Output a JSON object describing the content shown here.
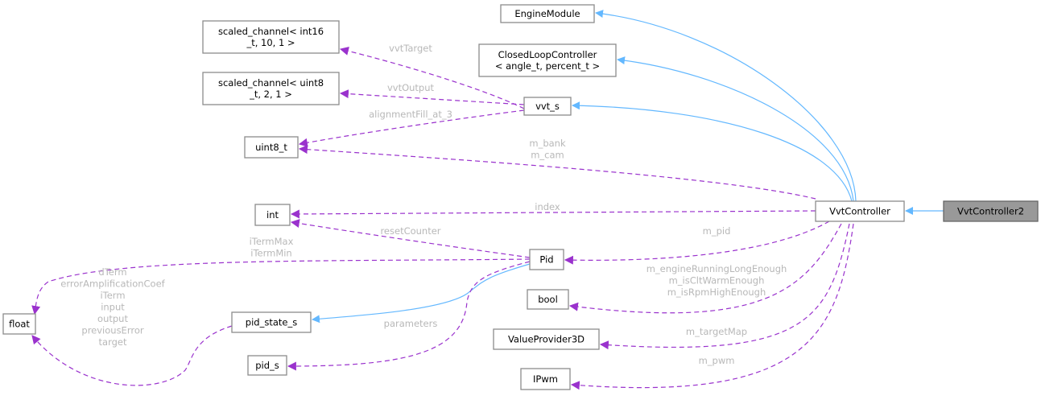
{
  "diagram": {
    "colors": {
      "inheritance": "#63b8ff",
      "usage": "#9a32cd",
      "current_node": "#999999",
      "label": "#b8b8b8"
    },
    "nodes": {
      "EngineModule": [
        "EngineModule"
      ],
      "ClosedLoopController": [
        "ClosedLoopController",
        "< angle_t, percent_t >"
      ],
      "sc_int16": [
        "scaled_channel< int16",
        "_t, 10, 1 >"
      ],
      "sc_uint8": [
        "scaled_channel< uint8",
        "_t, 2, 1 >"
      ],
      "vvt_s": [
        "vvt_s"
      ],
      "uint8_t": [
        "uint8_t"
      ],
      "int": [
        "int"
      ],
      "VvtController": [
        "VvtController"
      ],
      "VvtController2": [
        "VvtController2"
      ],
      "Pid": [
        "Pid"
      ],
      "float": [
        "float"
      ],
      "pid_state_s": [
        "pid_state_s"
      ],
      "bool": [
        "bool"
      ],
      "pid_s": [
        "pid_s"
      ],
      "ValueProvider3D": [
        "ValueProvider3D"
      ],
      "IPwm": [
        "IPwm"
      ]
    },
    "edges": [
      {
        "from": "VvtController",
        "to": "EngineModule",
        "kind": "inheritance",
        "labels": []
      },
      {
        "from": "VvtController",
        "to": "ClosedLoopController",
        "kind": "inheritance",
        "labels": []
      },
      {
        "from": "VvtController",
        "to": "vvt_s",
        "kind": "inheritance",
        "labels": []
      },
      {
        "from": "VvtController2",
        "to": "VvtController",
        "kind": "inheritance",
        "labels": []
      },
      {
        "from": "Pid",
        "to": "pid_state_s",
        "kind": "inheritance",
        "labels": []
      },
      {
        "from": "vvt_s",
        "to": "sc_int16",
        "kind": "usage",
        "labels": [
          "vvtTarget"
        ]
      },
      {
        "from": "vvt_s",
        "to": "sc_uint8",
        "kind": "usage",
        "labels": [
          "vvtOutput"
        ]
      },
      {
        "from": "vvt_s",
        "to": "uint8_t",
        "kind": "usage",
        "labels": [
          "alignmentFill_at_3"
        ]
      },
      {
        "from": "VvtController",
        "to": "uint8_t",
        "kind": "usage",
        "labels": [
          "m_bank",
          "m_cam"
        ]
      },
      {
        "from": "VvtController",
        "to": "int",
        "kind": "usage",
        "labels": [
          "index"
        ]
      },
      {
        "from": "Pid",
        "to": "int",
        "kind": "usage",
        "labels": [
          "resetCounter"
        ]
      },
      {
        "from": "Pid",
        "to": "float",
        "kind": "usage",
        "labels": [
          "iTermMax",
          "iTermMin"
        ]
      },
      {
        "from": "pid_state_s",
        "to": "float",
        "kind": "usage",
        "labels": [
          "dTerm",
          "errorAmplificationCoef",
          "iTerm",
          "input",
          "output",
          "previousError",
          "target"
        ]
      },
      {
        "from": "Pid",
        "to": "pid_s",
        "kind": "usage",
        "labels": [
          "parameters"
        ]
      },
      {
        "from": "VvtController",
        "to": "Pid",
        "kind": "usage",
        "labels": [
          "m_pid"
        ]
      },
      {
        "from": "VvtController",
        "to": "bool",
        "kind": "usage",
        "labels": [
          "m_engineRunningLongEnough",
          "m_isCltWarmEnough",
          "m_isRpmHighEnough"
        ]
      },
      {
        "from": "VvtController",
        "to": "ValueProvider3D",
        "kind": "usage",
        "labels": [
          "m_targetMap"
        ]
      },
      {
        "from": "VvtController",
        "to": "IPwm",
        "kind": "usage",
        "labels": [
          "m_pwm"
        ]
      }
    ],
    "current": "VvtController2"
  }
}
